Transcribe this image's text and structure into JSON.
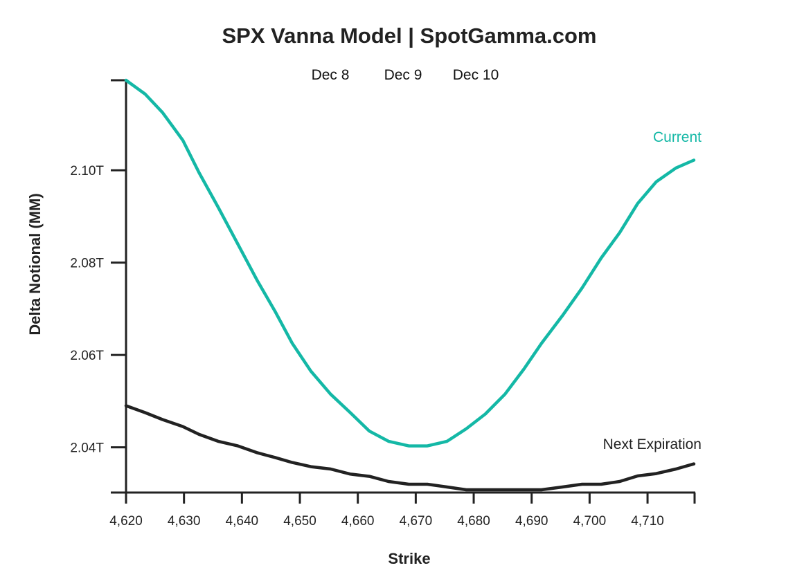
{
  "chart_data": {
    "type": "line",
    "title": "SPX Vanna Model | SpotGamma.com",
    "date_selector": [
      "Dec 8",
      "Dec 9",
      "Dec 10"
    ],
    "xlabel": "Strike",
    "ylabel": "Delta Notional (MM)",
    "xlim": [
      4620,
      4718
    ],
    "ylim": [
      2.0302,
      2.1195
    ],
    "x_ticks": [
      4620,
      4630,
      4640,
      4650,
      4660,
      4670,
      4680,
      4690,
      4700,
      4710
    ],
    "x_tick_labels": [
      "4,620",
      "4,630",
      "4,640",
      "4,650",
      "4,660",
      "4,670",
      "4,680",
      "4,690",
      "4,700",
      "4,710"
    ],
    "y_ticks": [
      2.04,
      2.06,
      2.08,
      2.1
    ],
    "y_tick_labels": [
      "2.04T",
      "2.06T",
      "2.08T",
      "2.10T"
    ],
    "grid": false,
    "legend": "direct labels at right end of each line",
    "x": [
      4620,
      4623.3,
      4626.3,
      4629.8,
      4632.6,
      4635.9,
      4639.3,
      4642.7,
      4645.7,
      4648.7,
      4651.9,
      4655.3,
      4658.7,
      4662.0,
      4665.3,
      4668.8,
      4672.0,
      4675.4,
      4678.7,
      4682.0,
      4685.4,
      4688.7,
      4691.7,
      4695.3,
      4698.7,
      4702.0,
      4705.2,
      4708.3,
      4711.5,
      4714.9,
      4718
    ],
    "series": [
      {
        "name": "Current",
        "color": "#14b8a6",
        "values": [
          2.1195,
          2.1165,
          2.1125,
          2.1065,
          2.0995,
          2.092,
          2.084,
          2.076,
          2.0695,
          2.0625,
          2.0565,
          2.0515,
          2.0475,
          2.0435,
          2.0413,
          2.0403,
          2.0403,
          2.0413,
          2.044,
          2.0472,
          2.0515,
          2.057,
          2.0625,
          2.0685,
          2.0745,
          2.081,
          2.0865,
          2.0928,
          2.0975,
          2.1005,
          2.1022
        ]
      },
      {
        "name": "Next Expiration",
        "color": "#222222",
        "values": [
          2.049,
          2.0475,
          2.046,
          2.0445,
          2.0428,
          2.0413,
          2.0403,
          2.0388,
          2.0378,
          2.0367,
          2.0358,
          2.0353,
          2.0342,
          2.0337,
          2.0326,
          2.032,
          2.032,
          2.0314,
          2.0308,
          2.0308,
          2.0308,
          2.0308,
          2.0308,
          2.0314,
          2.032,
          2.032,
          2.0326,
          2.0338,
          2.0343,
          2.0353,
          2.0364
        ]
      }
    ]
  }
}
